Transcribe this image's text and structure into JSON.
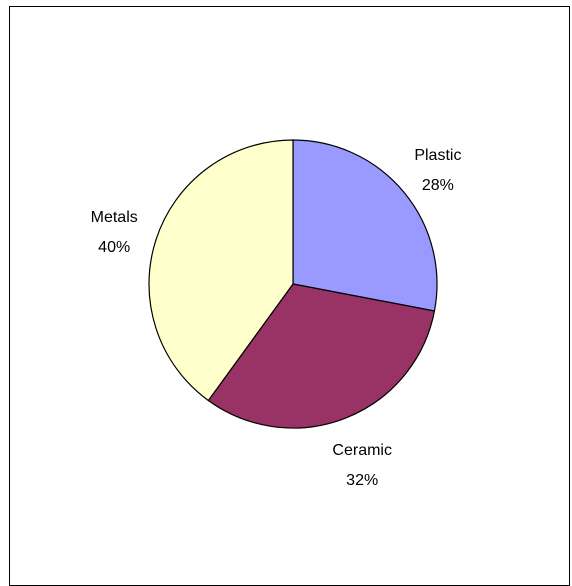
{
  "chart_data": {
    "type": "pie",
    "categories": [
      "Plastic",
      "Ceramic",
      "Metals"
    ],
    "values": [
      28,
      32,
      40
    ],
    "value_labels": [
      "28%",
      "32%",
      "40%"
    ],
    "colors": [
      "#9999FF",
      "#993366",
      "#FFFFCC"
    ],
    "start_angle": "12 o'clock",
    "direction": "clockwise",
    "legend": "none",
    "slice_outline": "#000000"
  }
}
